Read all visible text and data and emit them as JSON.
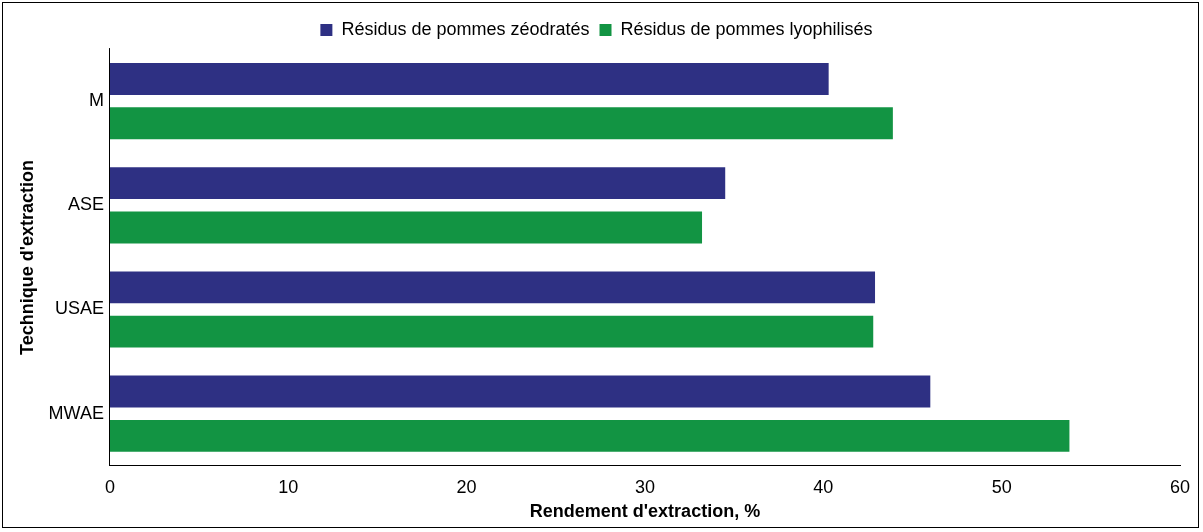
{
  "chart_data": {
    "type": "bar",
    "orientation": "horizontal",
    "xlabel": "Rendement d'extraction, %",
    "ylabel": "Technique d'extraction",
    "categories": [
      "M",
      "ASE",
      "USAE",
      "MWAE"
    ],
    "series": [
      {
        "name": "Résidus de pommes zéodratés",
        "color": "#2e3083",
        "values": [
          40.3,
          34.5,
          42.9,
          46.0
        ]
      },
      {
        "name": "Résidus de pommes lyophilisés",
        "color": "#129443",
        "values": [
          43.9,
          33.2,
          42.8,
          53.8
        ]
      }
    ],
    "xlim": [
      0,
      60
    ],
    "xticks": [
      0,
      10,
      20,
      30,
      40,
      50,
      60
    ],
    "grid": false,
    "legend": "top"
  }
}
